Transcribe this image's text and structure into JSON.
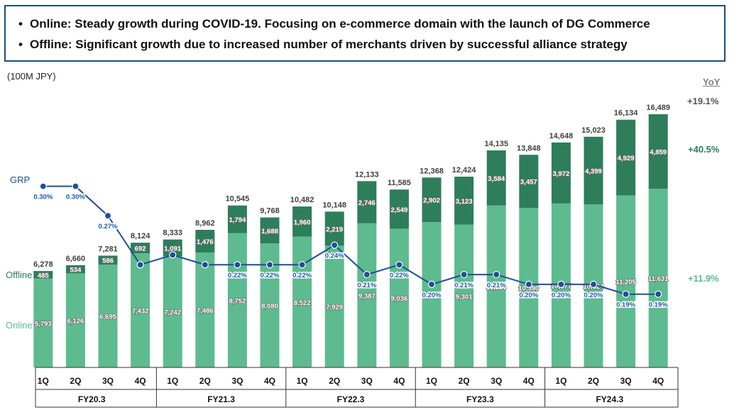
{
  "headline": {
    "bullets": [
      "Online: Steady growth during COVID-19. Focusing on e-commerce domain with the launch of DG Commerce",
      "Offline: Significant growth due to increased number of merchants driven by successful alliance strategy"
    ]
  },
  "unit_label": "(100M JPY)",
  "yoy_header": "YoY",
  "colors": {
    "online": "#5dbb8f",
    "offline": "#2e7d5b",
    "grp_line": "#1f4e96",
    "grp_text": "#1f5aa6",
    "yoy_total": "#555555",
    "border": "#1f4e79"
  },
  "chart_data": {
    "type": "bar",
    "stacked": true,
    "categories": [
      "1Q",
      "2Q",
      "3Q",
      "4Q",
      "1Q",
      "2Q",
      "3Q",
      "4Q",
      "1Q",
      "2Q",
      "3Q",
      "4Q",
      "1Q",
      "2Q",
      "3Q",
      "4Q",
      "1Q",
      "2Q",
      "3Q",
      "4Q"
    ],
    "fiscal_years": [
      {
        "label": "FY20.3",
        "start": 0,
        "count": 4
      },
      {
        "label": "FY21.3",
        "start": 4,
        "count": 4
      },
      {
        "label": "FY22.3",
        "start": 8,
        "count": 4
      },
      {
        "label": "FY23.3",
        "start": 12,
        "count": 4
      },
      {
        "label": "FY24.3",
        "start": 16,
        "count": 4
      }
    ],
    "series": [
      {
        "name": "Online",
        "values": [
          5793,
          6126,
          6695,
          7432,
          7242,
          7486,
          8752,
          8080,
          8522,
          7929,
          9387,
          9036,
          9466,
          9301,
          10550,
          10390,
          10677,
          10624,
          11205,
          11631
        ],
        "labels": [
          "5,793",
          "6,126",
          "6,695",
          "7,432",
          "7,242",
          "7,486",
          "8,752",
          "8,080",
          "8,522",
          "7,929",
          "9,387",
          "9,036",
          "9,466",
          "9,301",
          "10,550",
          "10,390",
          "10,677",
          "10,624",
          "11,205",
          "11,631"
        ]
      },
      {
        "name": "Offline",
        "values": [
          485,
          534,
          586,
          692,
          1091,
          1476,
          1794,
          1688,
          1960,
          2219,
          2746,
          2549,
          2902,
          3123,
          3584,
          3457,
          3972,
          4399,
          4929,
          4859
        ],
        "labels": [
          "485",
          "534",
          "586",
          "692",
          "1,091",
          "1,476",
          "1,794",
          "1,688",
          "1,960",
          "2,219",
          "2,746",
          "2,549",
          "2,902",
          "3,123",
          "3,584",
          "3,457",
          "3,972",
          "4,399",
          "4,929",
          "4,859"
        ]
      }
    ],
    "totals": [
      6278,
      6660,
      7281,
      8124,
      8333,
      8962,
      10545,
      9768,
      10482,
      10148,
      12133,
      11585,
      12368,
      12424,
      14135,
      13848,
      14648,
      15023,
      16134,
      16489
    ],
    "total_labels": [
      "6,278",
      "6,660",
      "7,281",
      "8,124",
      "8,333",
      "8,962",
      "10,545",
      "9,768",
      "10,482",
      "10,148",
      "12,133",
      "11,585",
      "12,368",
      "12,424",
      "14,135",
      "13,848",
      "14,648",
      "15,023",
      "16,134",
      "16,489"
    ],
    "grp": {
      "name": "GRP",
      "values": [
        0.3,
        0.3,
        0.27,
        0.22,
        0.23,
        0.22,
        0.22,
        0.22,
        0.22,
        0.24,
        0.21,
        0.22,
        0.2,
        0.21,
        0.21,
        0.2,
        0.2,
        0.2,
        0.19,
        0.19
      ],
      "labels": [
        "0.30%",
        "0.30%",
        "0.27%",
        "",
        "",
        "",
        "0.22%",
        "0.22%",
        "0.22%",
        "0.24%",
        "0.21%",
        "0.22%",
        "0.20%",
        "0.21%",
        "0.21%",
        "0.20%",
        "0.20%",
        "0.20%",
        "0.19%",
        "0.19%"
      ],
      "ylim": [
        0.15,
        0.32
      ]
    },
    "ylim": [
      0,
      17000
    ],
    "yoy": {
      "total": "+19.1%",
      "offline": "+40.5%",
      "online": "+11.9%"
    }
  }
}
